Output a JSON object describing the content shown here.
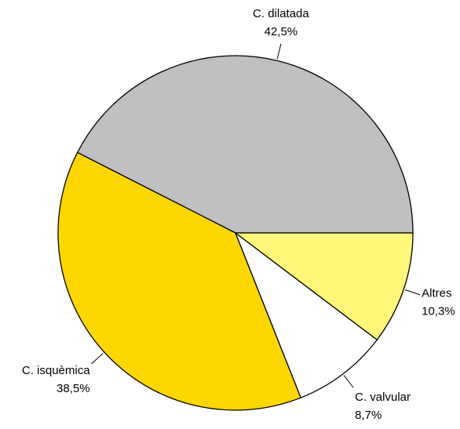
{
  "chart_data": {
    "type": "pie",
    "categories": [
      "C. dilatada",
      "C. isquèmica",
      "C. valvular",
      "Altres"
    ],
    "values": [
      42.5,
      38.5,
      8.7,
      10.3
    ],
    "value_labels": [
      "42,5%",
      "38,5%",
      "8,7%",
      "10,3%"
    ],
    "colors": [
      "#c0c0c0",
      "#ffd700",
      "#ffffff",
      "#fff87a"
    ]
  }
}
